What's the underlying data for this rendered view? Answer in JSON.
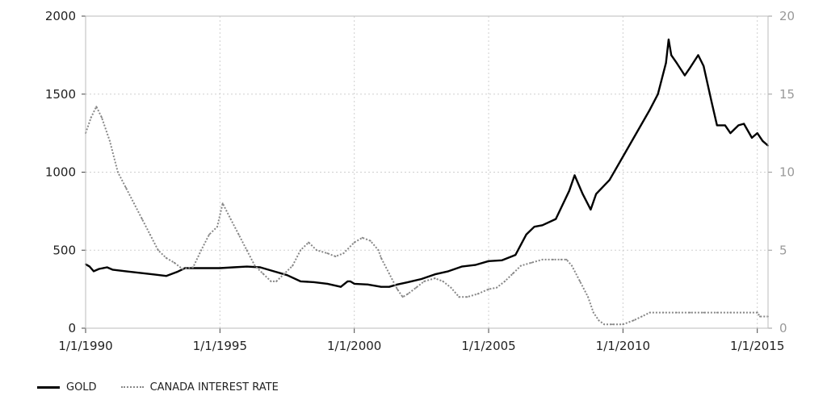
{
  "chart_data": {
    "type": "line",
    "title": "",
    "xlabel": "",
    "ylabel": "",
    "y2label": "",
    "grid": true,
    "legend_position": "bottom-left",
    "x_ticks": [
      "1/1/1990",
      "1/1/1995",
      "1/1/2000",
      "1/1/2005",
      "1/1/2010",
      "1/1/2015"
    ],
    "x_tick_years": [
      1990,
      1995,
      2000,
      2005,
      2010,
      2015
    ],
    "xlim": [
      1990.0,
      2015.4
    ],
    "y_left_ticks": [
      "0",
      "500",
      "1000",
      "1500",
      "2000"
    ],
    "ylim_left": [
      0,
      2000
    ],
    "y_right_ticks": [
      "0",
      "5",
      "10",
      "15",
      "20"
    ],
    "ylim_right": [
      0,
      20
    ],
    "series": [
      {
        "name": "GOLD",
        "axis": "left",
        "color": "#000000",
        "style": "solid",
        "x": [
          1990.0,
          1990.15,
          1990.3,
          1990.5,
          1990.8,
          1991.0,
          1991.5,
          1992.0,
          1992.5,
          1993.0,
          1993.4,
          1993.7,
          1994.0,
          1994.5,
          1995.0,
          1995.5,
          1996.0,
          1996.5,
          1997.0,
          1997.5,
          1998.0,
          1998.5,
          1999.0,
          1999.5,
          1999.75,
          1999.85,
          2000.0,
          2000.5,
          2001.0,
          2001.3,
          2001.6,
          2002.0,
          2002.5,
          2003.0,
          2003.5,
          2004.0,
          2004.5,
          2005.0,
          2005.5,
          2006.0,
          2006.4,
          2006.7,
          2007.0,
          2007.5,
          2008.0,
          2008.2,
          2008.5,
          2008.8,
          2009.0,
          2009.5,
          2010.0,
          2010.5,
          2011.0,
          2011.3,
          2011.6,
          2011.7,
          2011.8,
          2012.0,
          2012.3,
          2012.5,
          2012.8,
          2013.0,
          2013.3,
          2013.5,
          2013.8,
          2014.0,
          2014.3,
          2014.5,
          2014.8,
          2015.0,
          2015.2,
          2015.4
        ],
        "values": [
          410,
          395,
          365,
          380,
          390,
          375,
          365,
          355,
          345,
          335,
          360,
          385,
          385,
          385,
          385,
          390,
          395,
          390,
          365,
          340,
          300,
          295,
          285,
          265,
          300,
          300,
          285,
          280,
          265,
          265,
          280,
          295,
          315,
          345,
          365,
          395,
          405,
          430,
          435,
          470,
          600,
          650,
          660,
          700,
          880,
          980,
          860,
          760,
          860,
          950,
          1100,
          1250,
          1400,
          1500,
          1700,
          1850,
          1750,
          1700,
          1620,
          1670,
          1750,
          1680,
          1450,
          1300,
          1300,
          1250,
          1300,
          1310,
          1220,
          1250,
          1200,
          1170
        ]
      },
      {
        "name": "CANADA INTEREST RATE",
        "axis": "right",
        "color": "#888888",
        "style": "dotted",
        "x": [
          1990.0,
          1990.2,
          1990.4,
          1990.6,
          1990.9,
          1991.2,
          1991.5,
          1991.8,
          1992.1,
          1992.4,
          1992.7,
          1993.0,
          1993.3,
          1993.6,
          1994.0,
          1994.3,
          1994.6,
          1994.9,
          1995.1,
          1995.4,
          1995.7,
          1996.0,
          1996.3,
          1996.6,
          1996.9,
          1997.1,
          1997.4,
          1997.7,
          1998.0,
          1998.3,
          1998.6,
          1999.0,
          1999.3,
          1999.6,
          2000.0,
          2000.3,
          2000.6,
          2000.9,
          2001.0,
          2001.3,
          2001.6,
          2001.8,
          2002.0,
          2002.3,
          2002.6,
          2003.0,
          2003.3,
          2003.6,
          2003.9,
          2004.2,
          2004.6,
          2005.0,
          2005.3,
          2005.6,
          2005.9,
          2006.2,
          2006.6,
          2007.0,
          2007.4,
          2007.7,
          2007.9,
          2008.1,
          2008.4,
          2008.7,
          2008.9,
          2009.1,
          2009.3,
          2009.6,
          2010.0,
          2010.4,
          2010.7,
          2011.0,
          2011.5,
          2012.0,
          2012.5,
          2013.0,
          2013.5,
          2014.0,
          2014.5,
          2015.0,
          2015.1,
          2015.4
        ],
        "values": [
          12.5,
          13.5,
          14.2,
          13.5,
          12.0,
          10.0,
          9.0,
          8.0,
          7.0,
          6.0,
          5.0,
          4.5,
          4.2,
          3.8,
          3.9,
          5.0,
          6.0,
          6.5,
          8.0,
          7.0,
          6.0,
          5.0,
          4.0,
          3.5,
          3.0,
          3.0,
          3.5,
          4.0,
          5.0,
          5.5,
          5.0,
          4.8,
          4.6,
          4.8,
          5.5,
          5.8,
          5.6,
          5.0,
          4.5,
          3.5,
          2.5,
          2.0,
          2.2,
          2.6,
          3.0,
          3.2,
          3.0,
          2.6,
          2.0,
          2.0,
          2.2,
          2.5,
          2.6,
          3.0,
          3.5,
          4.0,
          4.2,
          4.4,
          4.4,
          4.4,
          4.4,
          4.0,
          3.0,
          2.0,
          1.0,
          0.5,
          0.25,
          0.25,
          0.25,
          0.5,
          0.75,
          1.0,
          1.0,
          1.0,
          1.0,
          1.0,
          1.0,
          1.0,
          1.0,
          1.0,
          0.75,
          0.75
        ]
      }
    ]
  },
  "legend": {
    "gold_label": "GOLD",
    "rate_label": "CANADA INTEREST RATE"
  }
}
